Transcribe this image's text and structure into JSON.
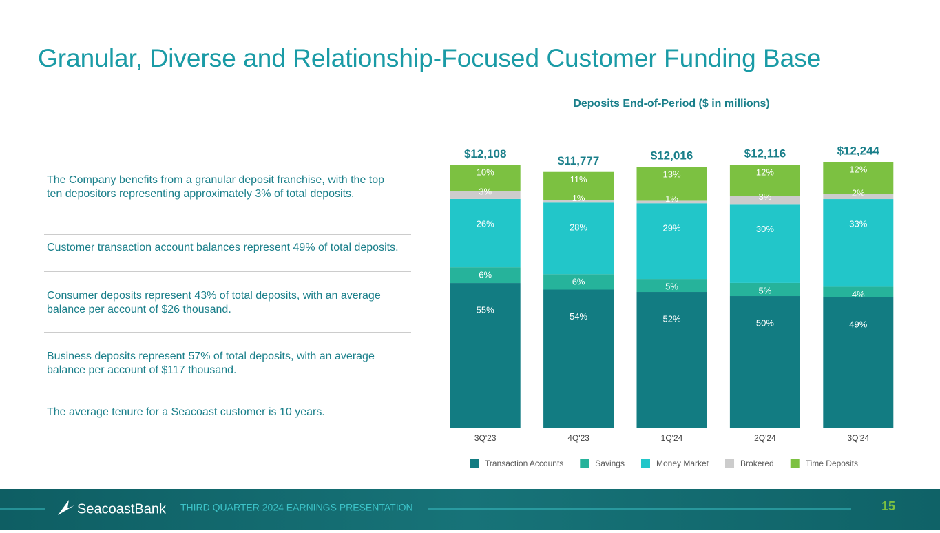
{
  "title": "Granular, Diverse and Relationship-Focused Customer Funding Base",
  "bullets": [
    "The Company benefits from a granular deposit franchise, with the top ten depositors representing approximately 3% of total deposits.",
    "Customer transaction account balances represent 49% of total deposits.",
    "Consumer deposits represent 43% of total deposits, with an average balance per account of $26 thousand.",
    "Business deposits represent 57% of total deposits, with an average balance per account of $117 thousand.",
    "The average tenure for a Seacoast customer is 10 years."
  ],
  "footer": {
    "brand": "SeacoastBank",
    "text": "THIRD QUARTER 2024 EARNINGS PRESENTATION",
    "page": "15"
  },
  "chart_data": {
    "type": "stacked-bar",
    "title": "Deposits End-of-Period ($ in millions)",
    "categories": [
      "3Q'23",
      "4Q'23",
      "1Q'24",
      "2Q'24",
      "3Q'24"
    ],
    "totals": {
      "values": [
        12108,
        11777,
        12016,
        12116,
        12244
      ],
      "value_labels": [
        "$12,108",
        "$11,777",
        "$12,016",
        "$12,116",
        "$12,244"
      ]
    },
    "series": [
      {
        "name": "Transaction Accounts",
        "color": "#127c82",
        "values": [
          55,
          54,
          52,
          50,
          49
        ],
        "value_labels": [
          "55%",
          "54%",
          "52%",
          "50%",
          "49%"
        ]
      },
      {
        "name": "Savings",
        "color": "#26b39b",
        "values": [
          6,
          6,
          5,
          5,
          4
        ],
        "value_labels": [
          "6%",
          "6%",
          "5%",
          "5%",
          "4%"
        ]
      },
      {
        "name": "Money Market",
        "color": "#22c6c9",
        "values": [
          26,
          28,
          29,
          30,
          33
        ],
        "value_labels": [
          "26%",
          "28%",
          "29%",
          "30%",
          "33%"
        ]
      },
      {
        "name": "Brokered",
        "color": "#cccccc",
        "values": [
          3,
          1,
          1,
          3,
          2
        ],
        "value_labels": [
          "3%",
          "1%",
          "1%",
          "3%",
          "2%"
        ]
      },
      {
        "name": "Time Deposits",
        "color": "#7cc141",
        "values": [
          10,
          11,
          13,
          12,
          12
        ],
        "value_labels": [
          "10%",
          "11%",
          "13%",
          "12%",
          "12%"
        ]
      }
    ],
    "legend": "bottom"
  }
}
